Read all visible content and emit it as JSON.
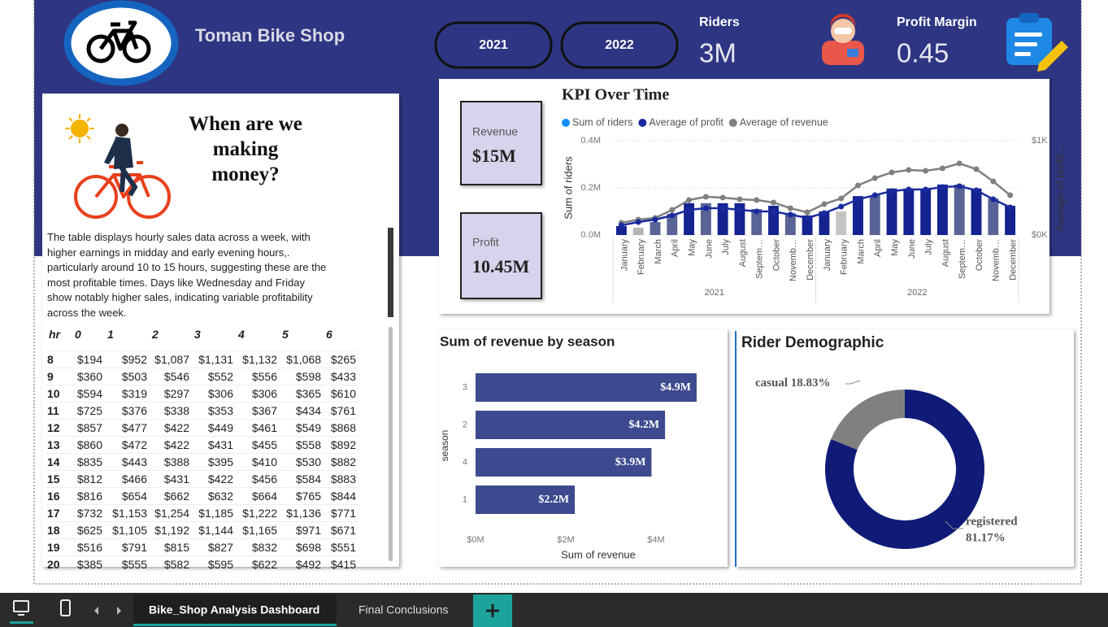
{
  "header": {
    "title": "Toman Bike Shop",
    "years": [
      "2021",
      "2022"
    ],
    "kpis": [
      {
        "label": "Riders",
        "value": "3M"
      },
      {
        "label": "Profit Margin",
        "value": "0.45"
      }
    ]
  },
  "text_card": {
    "heading": "When are we making money?",
    "body": "The table displays hourly sales data across a week, with higher earnings in midday and early evening hours,. particularly around 10 to 15 hours, suggesting these are the most profitable times. Days like Wednesday and Friday show notably higher sales, indicating variable profitability across the week."
  },
  "table": {
    "header": [
      "hr",
      "0",
      "1",
      "2",
      "3",
      "4",
      "5",
      "6"
    ],
    "rows": [
      [
        "8",
        "$194",
        "$952",
        "$1,087",
        "$1,131",
        "$1,132",
        "$1,068",
        "$265"
      ],
      [
        "9",
        "$360",
        "$503",
        "$546",
        "$552",
        "$556",
        "$598",
        "$433"
      ],
      [
        "10",
        "$594",
        "$319",
        "$297",
        "$306",
        "$306",
        "$365",
        "$610"
      ],
      [
        "11",
        "$725",
        "$376",
        "$338",
        "$353",
        "$367",
        "$434",
        "$761"
      ],
      [
        "12",
        "$857",
        "$477",
        "$422",
        "$449",
        "$461",
        "$549",
        "$868"
      ],
      [
        "13",
        "$860",
        "$472",
        "$422",
        "$431",
        "$455",
        "$558",
        "$892"
      ],
      [
        "14",
        "$835",
        "$443",
        "$388",
        "$395",
        "$410",
        "$530",
        "$882"
      ],
      [
        "15",
        "$812",
        "$466",
        "$431",
        "$422",
        "$456",
        "$584",
        "$883"
      ],
      [
        "16",
        "$816",
        "$654",
        "$662",
        "$632",
        "$664",
        "$765",
        "$844"
      ],
      [
        "17",
        "$732",
        "$1,153",
        "$1,254",
        "$1,185",
        "$1,222",
        "$1,136",
        "$771"
      ],
      [
        "18",
        "$625",
        "$1,105",
        "$1,192",
        "$1,144",
        "$1,165",
        "$971",
        "$671"
      ],
      [
        "19",
        "$516",
        "$791",
        "$815",
        "$827",
        "$832",
        "$698",
        "$551"
      ],
      [
        "20",
        "$385",
        "$555",
        "$582",
        "$595",
        "$622",
        "$492",
        "$415"
      ]
    ]
  },
  "kpi_cards": [
    {
      "label": "Revenue",
      "value": "$15M"
    },
    {
      "label": "Profit",
      "value": "10.45M"
    }
  ],
  "chart_data": [
    {
      "type": "combo",
      "title": "KPI Over Time",
      "ylabel": "Sum of riders",
      "y2label": "Average of profit…",
      "categories": [
        "January",
        "February",
        "March",
        "April",
        "May",
        "June",
        "July",
        "August",
        "Septem…",
        "October",
        "Novemb…",
        "December",
        "January",
        "February",
        "March",
        "April",
        "May",
        "June",
        "July",
        "August",
        "Septem…",
        "October",
        "Novemb…",
        "December"
      ],
      "years": [
        "2021",
        "2022"
      ],
      "ylim": [
        0,
        400000
      ],
      "yticks": [
        {
          "value": 0,
          "label": "0.0M"
        },
        {
          "value": 200000,
          "label": "0.2M"
        },
        {
          "value": 400000,
          "label": "0.4M"
        }
      ],
      "y2lim": [
        0,
        1000
      ],
      "y2ticks": [
        {
          "value": 0,
          "label": "$0K"
        },
        {
          "value": 1000,
          "label": "$1K"
        }
      ],
      "grid": true,
      "series": [
        {
          "name": "Sum of riders",
          "type": "bar",
          "color": "#118dff",
          "bar_colors": [
            "#14238f",
            "#b4b4b4",
            "#5a6396",
            "#5a6396",
            "#14238f",
            "#5a6396",
            "#14238f",
            "#14238f",
            "#5a6396",
            "#14238f",
            "#5a6396",
            "#14238f",
            "#14238f",
            "#c4c4c4",
            "#14238f",
            "#5a6396",
            "#14238f",
            "#14238f",
            "#14238f",
            "#14238f",
            "#5a6396",
            "#14238f",
            "#5a6396",
            "#14238f"
          ],
          "values": [
            38000,
            31000,
            55000,
            90000,
            135000,
            135000,
            135000,
            135000,
            110000,
            124000,
            93000,
            83000,
            100000,
            100000,
            165000,
            169000,
            197000,
            197000,
            197000,
            214000,
            214000,
            197000,
            155000,
            124000
          ]
        },
        {
          "name": "Average of profit",
          "type": "line",
          "axis": "y2",
          "color": "#1a2a9e",
          "values": [
            103,
            138,
            164,
            207,
            267,
            284,
            284,
            267,
            250,
            250,
            216,
            181,
            233,
            302,
            379,
            422,
            466,
            483,
            483,
            509,
            517,
            474,
            379,
            293
          ]
        },
        {
          "name": "Average of revenue",
          "type": "line",
          "axis": "y2",
          "color": "#808080",
          "values": [
            129,
            164,
            181,
            267,
            371,
            405,
            397,
            379,
            371,
            345,
            284,
            241,
            328,
            388,
            526,
            603,
            664,
            690,
            681,
            707,
            759,
            698,
            569,
            422
          ]
        }
      ]
    },
    {
      "type": "hbar",
      "title": "Sum of revenue by season",
      "xlabel": "Sum of revenue",
      "ylabel": "season",
      "color": "#3d4a8f",
      "categories": [
        "3",
        "2",
        "4",
        "1"
      ],
      "values": [
        4900000,
        4200000,
        3900000,
        2200000
      ],
      "value_labels": [
        "$4.9M",
        "$4.2M",
        "$3.9M",
        "$2.2M"
      ],
      "xlim": [
        0,
        5000000
      ],
      "xticks": [
        {
          "value": 0,
          "label": "$0M"
        },
        {
          "value": 2000000,
          "label": "$2M"
        },
        {
          "value": 4000000,
          "label": "$4M"
        }
      ]
    },
    {
      "type": "donut",
      "title": "Rider Demographic",
      "categories": [
        "registered",
        "casual"
      ],
      "values": [
        81.17,
        18.83
      ],
      "value_labels": [
        "81.17%",
        "18.83%"
      ],
      "colors": [
        "#0f1b77",
        "#808080"
      ]
    }
  ],
  "tabs": [
    "Bike_Shop Analysis Dashboard",
    "Final Conclusions"
  ]
}
